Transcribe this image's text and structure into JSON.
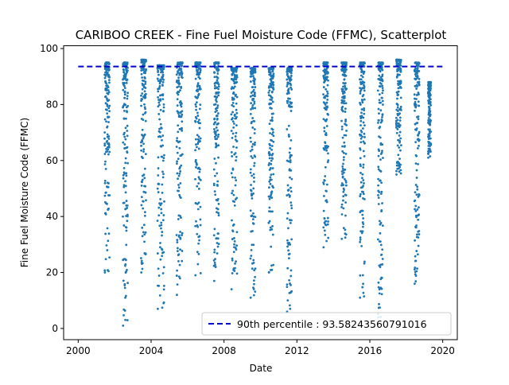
{
  "chart_data": {
    "type": "scatter",
    "title": "CARIBOO CREEK - Fine Fuel Moisture Code (FFMC), Scatterplot",
    "xlabel": "Date",
    "ylabel": "Fine Fuel Moisture Code (FFMC)",
    "xlim": [
      1999.2,
      2020.8
    ],
    "ylim": [
      -4,
      101
    ],
    "x_ticks": [
      2000,
      2004,
      2008,
      2012,
      2016,
      2020
    ],
    "x_tick_labels": [
      "2000",
      "2004",
      "2008",
      "2012",
      "2016",
      "2020"
    ],
    "y_ticks": [
      0,
      20,
      40,
      60,
      80,
      100
    ],
    "y_tick_labels": [
      "0",
      "20",
      "40",
      "60",
      "80",
      "100"
    ],
    "grid": false,
    "legend_position": "lower right",
    "point_color": "#1f77b4",
    "reference_line": {
      "label": "90th percentile : 93.58243560791016",
      "value": 93.58243560791016,
      "x_range": [
        2000,
        2020
      ],
      "color": "#0000cc",
      "style": "dashed"
    },
    "seasons": [
      {
        "x_start": 2001.45,
        "x_end": 2001.72,
        "min": 20,
        "max": 95
      },
      {
        "x_start": 2002.45,
        "x_end": 2002.72,
        "min": 1,
        "max": 95
      },
      {
        "x_start": 2003.45,
        "x_end": 2003.72,
        "min": 20,
        "max": 96
      },
      {
        "x_start": 2004.35,
        "x_end": 2004.72,
        "min": 7,
        "max": 94
      },
      {
        "x_start": 2005.4,
        "x_end": 2005.72,
        "min": 12,
        "max": 95
      },
      {
        "x_start": 2006.42,
        "x_end": 2006.72,
        "min": 19,
        "max": 95
      },
      {
        "x_start": 2007.45,
        "x_end": 2007.72,
        "min": 17,
        "max": 95
      },
      {
        "x_start": 2008.4,
        "x_end": 2008.72,
        "min": 14,
        "max": 93
      },
      {
        "x_start": 2009.45,
        "x_end": 2009.72,
        "min": 11,
        "max": 93
      },
      {
        "x_start": 2010.45,
        "x_end": 2010.72,
        "min": 20,
        "max": 93
      },
      {
        "x_start": 2011.45,
        "x_end": 2011.72,
        "min": 6,
        "max": 93
      },
      {
        "x_start": 2013.45,
        "x_end": 2013.72,
        "min": 29,
        "max": 95
      },
      {
        "x_start": 2014.45,
        "x_end": 2014.72,
        "min": 32,
        "max": 95
      },
      {
        "x_start": 2015.45,
        "x_end": 2015.72,
        "min": 11,
        "max": 95
      },
      {
        "x_start": 2016.45,
        "x_end": 2016.72,
        "min": 4,
        "max": 95
      },
      {
        "x_start": 2017.45,
        "x_end": 2017.72,
        "min": 55,
        "max": 96
      },
      {
        "x_start": 2018.45,
        "x_end": 2018.72,
        "min": 16,
        "max": 95
      },
      {
        "x_start": 2019.2,
        "x_end": 2019.35,
        "min": 61,
        "max": 88
      }
    ]
  }
}
